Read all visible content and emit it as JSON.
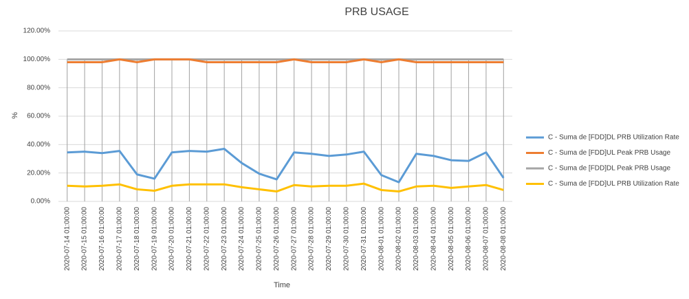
{
  "chart_data": {
    "type": "line",
    "title": "PRB USAGE",
    "x_label": "Time",
    "y_label": "%",
    "categories": [
      "2020-07-14 01:00:00",
      "2020-07-15 01:00:00",
      "2020-07-16 01:00:00",
      "2020-07-17 01:00:00",
      "2020-07-18 01:00:00",
      "2020-07-19 01:00:00",
      "2020-07-20 01:00:00",
      "2020-07-21 01:00:00",
      "2020-07-22 01:00:00",
      "2020-07-23 01:00:00",
      "2020-07-24 01:00:00",
      "2020-07-25 01:00:00",
      "2020-07-26 01:00:00",
      "2020-07-27 01:00:00",
      "2020-07-28 01:00:00",
      "2020-07-29 01:00:00",
      "2020-07-30 01:00:00",
      "2020-07-31 01:00:00",
      "2020-08-01 01:00:00",
      "2020-08-02 01:00:00",
      "2020-08-03 01:00:00",
      "2020-08-04 01:00:00",
      "2020-08-05 01:00:00",
      "2020-08-06 01:00:00",
      "2020-08-07 01:00:00",
      "2020-08-08 01:00:00"
    ],
    "series": [
      {
        "name": "C - Suma de [FDD]DL PRB Utilization Rate",
        "color": "#5b9bd5",
        "values": [
          34.5,
          35,
          34,
          35.5,
          19,
          16,
          34.5,
          35.5,
          35,
          37,
          27,
          19.5,
          15.5,
          34.5,
          33.5,
          32,
          33,
          35,
          18.5,
          13.5,
          33.5,
          32,
          29,
          28.5,
          34.5,
          16.5
        ]
      },
      {
        "name": "C - Suma de [FDD]UL Peak PRB Usage",
        "color": "#ed7d31",
        "values": [
          98,
          98,
          98,
          100,
          98,
          100,
          100,
          100,
          98,
          98,
          98,
          98,
          98,
          100,
          98,
          98,
          98,
          100,
          98,
          100,
          98,
          98,
          98,
          98,
          98,
          98
        ]
      },
      {
        "name": "C - Suma de [FDD]DL Peak PRB Usage",
        "color": "#a5a5a5",
        "values": [
          100,
          100,
          100,
          100,
          100,
          100,
          100,
          100,
          100,
          100,
          100,
          100,
          100,
          100,
          100,
          100,
          100,
          100,
          100,
          100,
          100,
          100,
          100,
          100,
          100,
          100
        ]
      },
      {
        "name": "C - Suma de [FDD]UL PRB Utilization Rate",
        "color": "#ffc000",
        "values": [
          11,
          10.5,
          11,
          12,
          8.5,
          7.5,
          11,
          12,
          12,
          12,
          10,
          8.5,
          7,
          11.5,
          10.5,
          11,
          11,
          12.5,
          8,
          7,
          10.5,
          11,
          9.5,
          10.5,
          11.5,
          8
        ]
      }
    ],
    "ylim": [
      0,
      120
    ],
    "yticks": [
      {
        "value": 0,
        "label": "0.00%"
      },
      {
        "value": 20,
        "label": "20.00%"
      },
      {
        "value": 40,
        "label": "40.00%"
      },
      {
        "value": 60,
        "label": "60.00%"
      },
      {
        "value": 80,
        "label": "80.00%"
      },
      {
        "value": 100,
        "label": "100.00%"
      },
      {
        "value": 120,
        "label": "120.00%"
      }
    ],
    "grid": true,
    "legend": "right"
  }
}
